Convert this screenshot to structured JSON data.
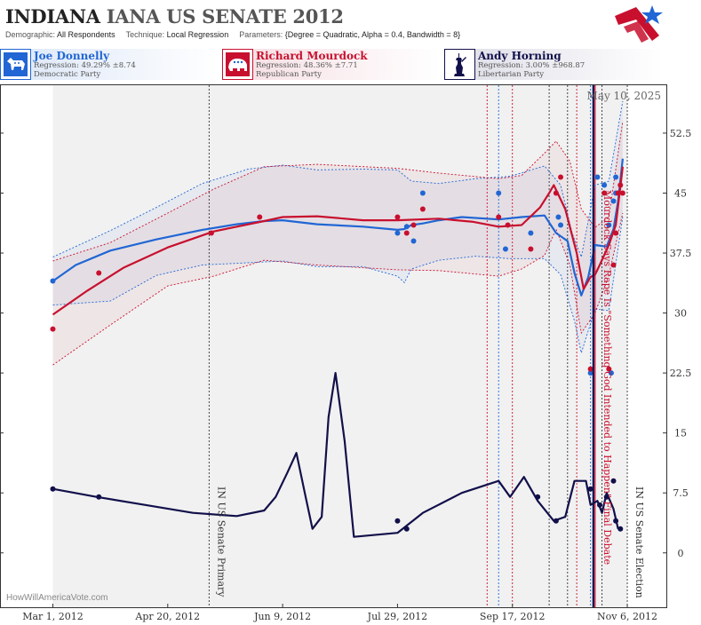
{
  "header": {
    "title_state": "INDIANA",
    "title_race": "IANA US SENATE 2012",
    "demographic_label": "Demographic:",
    "demographic_value": "All Respondents",
    "technique_label": "Technique:",
    "technique_value": "Local Regression",
    "parameters_label": "Parameters:",
    "parameters_value": "{Degree = Quadratic, Alpha = 0.4, Bandwidth = 8}"
  },
  "candidates": [
    {
      "name": "Joe Donnelly",
      "regression": "Regression: 49.29% ±8.74",
      "party": "Democratic Party",
      "color": "#2166d4",
      "icon": "donkey-icon"
    },
    {
      "name": "Richard Mourdock",
      "regression": "Regression: 48.36% ±7.71",
      "party": "Republican Party",
      "color": "#c8102e",
      "icon": "elephant-icon"
    },
    {
      "name": "Andy Horning",
      "regression": "Regression: 3.00% ±968.87",
      "party": "Libertarian Party",
      "color": "#12104a",
      "icon": "statue-of-liberty-icon"
    }
  ],
  "credit": "HowWillAmericaVote.com",
  "chart_data": {
    "type": "line",
    "date_label": "May 10, 2025",
    "x_ticks": [
      {
        "date": "2012-03-01",
        "label": "Mar 1, 2012"
      },
      {
        "date": "2012-04-20",
        "label": "Apr 20, 2012"
      },
      {
        "date": "2012-06-09",
        "label": "Jun 9, 2012"
      },
      {
        "date": "2012-07-29",
        "label": "Jul 29, 2012"
      },
      {
        "date": "2012-09-17",
        "label": "Sep 17, 2012"
      },
      {
        "date": "2012-11-06",
        "label": "Nov 6, 2012"
      }
    ],
    "y_ticks": [
      0,
      7.5,
      15,
      22.5,
      30,
      37.5,
      45,
      52.5
    ],
    "xlim": [
      "2012-02-07",
      "2012-11-23"
    ],
    "ylim": [
      -6.8,
      58.6
    ],
    "grid": false,
    "shaded_ranges": [
      {
        "start": "2012-03-01",
        "end": "2012-11-06"
      },
      {
        "start": "2012-09-06",
        "end": "2012-09-17"
      }
    ],
    "events": [
      {
        "date": "2012-05-08",
        "label": "IN US Senate Primary",
        "color": "#333333",
        "style": "dotted"
      },
      {
        "date": "2012-10-23",
        "label": "Mourdock Says Rape Is \"Something God Intended to Happen\" Final Debate",
        "color": "#c8102e",
        "style": "solid"
      },
      {
        "date": "2012-11-06",
        "label": "IN US Senate Election",
        "color": "#333333",
        "style": "dotted"
      }
    ],
    "reference_lines": [
      {
        "date": "2012-09-06",
        "color": "#c8102e"
      },
      {
        "date": "2012-09-11",
        "color": "#2166d4"
      },
      {
        "date": "2012-09-17",
        "color": "#c8102e"
      },
      {
        "date": "2012-10-03",
        "color": "#333333"
      },
      {
        "date": "2012-10-11",
        "color": "#333333"
      },
      {
        "date": "2012-10-15",
        "color": "#c8102e"
      },
      {
        "date": "2012-10-21",
        "color": "#2166d4"
      },
      {
        "date": "2012-10-26",
        "color": "#333333"
      }
    ],
    "series": [
      {
        "name": "Joe Donnelly",
        "color": "#2166d4",
        "line": [
          [
            "2012-03-01",
            34
          ],
          [
            "2012-03-11",
            36
          ],
          [
            "2012-03-26",
            37.8
          ],
          [
            "2012-04-15",
            39.2
          ],
          [
            "2012-05-05",
            40.4
          ],
          [
            "2012-05-20",
            41.1
          ],
          [
            "2012-06-01",
            41.5
          ],
          [
            "2012-06-09",
            41.6
          ],
          [
            "2012-06-24",
            41.1
          ],
          [
            "2012-07-14",
            40.8
          ],
          [
            "2012-07-29",
            40.4
          ],
          [
            "2012-08-01",
            40.5
          ],
          [
            "2012-08-04",
            41
          ],
          [
            "2012-08-09",
            41.2
          ],
          [
            "2012-08-16",
            41.6
          ],
          [
            "2012-08-26",
            42
          ],
          [
            "2012-09-11",
            41.7
          ],
          [
            "2012-09-21",
            42
          ],
          [
            "2012-10-01",
            42.2
          ],
          [
            "2012-10-06",
            40
          ],
          [
            "2012-10-11",
            39
          ],
          [
            "2012-10-14",
            35
          ],
          [
            "2012-10-17",
            32.2
          ],
          [
            "2012-10-20",
            34.5
          ],
          [
            "2012-10-23",
            38.5
          ],
          [
            "2012-10-28",
            38.3
          ],
          [
            "2012-10-31",
            40.5
          ],
          [
            "2012-11-02",
            44
          ],
          [
            "2012-11-04",
            49.3
          ]
        ],
        "upper": [
          [
            "2012-03-01",
            37
          ],
          [
            "2012-03-26",
            40.3
          ],
          [
            "2012-04-15",
            43.2
          ],
          [
            "2012-05-05",
            46.2
          ],
          [
            "2012-05-25",
            48
          ],
          [
            "2012-06-09",
            48.5
          ],
          [
            "2012-06-24",
            47.9
          ],
          [
            "2012-07-14",
            48
          ],
          [
            "2012-07-29",
            47.9
          ],
          [
            "2012-08-04",
            46.5
          ],
          [
            "2012-08-16",
            46.2
          ],
          [
            "2012-09-01",
            46.8
          ],
          [
            "2012-09-16",
            47.1
          ],
          [
            "2012-10-01",
            48.4
          ],
          [
            "2012-10-08",
            46
          ],
          [
            "2012-10-13",
            40
          ],
          [
            "2012-10-17",
            37
          ],
          [
            "2012-10-23",
            46
          ],
          [
            "2012-10-29",
            46.5
          ],
          [
            "2012-11-04",
            56.5
          ]
        ],
        "lower": [
          [
            "2012-03-01",
            31
          ],
          [
            "2012-03-26",
            31.5
          ],
          [
            "2012-04-15",
            34.7
          ],
          [
            "2012-05-05",
            36
          ],
          [
            "2012-06-09",
            36.5
          ],
          [
            "2012-06-24",
            35.8
          ],
          [
            "2012-07-14",
            35.8
          ],
          [
            "2012-07-29",
            34.6
          ],
          [
            "2012-08-01",
            33.8
          ],
          [
            "2012-08-04",
            35.5
          ],
          [
            "2012-08-16",
            36.6
          ],
          [
            "2012-09-01",
            37.1
          ],
          [
            "2012-09-16",
            36.8
          ],
          [
            "2012-10-01",
            36.8
          ],
          [
            "2012-10-08",
            34.8
          ],
          [
            "2012-10-14",
            29
          ],
          [
            "2012-10-17",
            25
          ],
          [
            "2012-10-23",
            30.5
          ],
          [
            "2012-10-29",
            30.3
          ],
          [
            "2012-11-04",
            42
          ]
        ],
        "points": [
          [
            "2012-03-01",
            34
          ],
          [
            "2012-07-29",
            40
          ],
          [
            "2012-08-02",
            40.8
          ],
          [
            "2012-08-05",
            39
          ],
          [
            "2012-08-09",
            45
          ],
          [
            "2012-09-11",
            45
          ],
          [
            "2012-09-14",
            38
          ],
          [
            "2012-09-25",
            40
          ],
          [
            "2012-10-07",
            42
          ],
          [
            "2012-10-08",
            41
          ],
          [
            "2012-10-21",
            22.5
          ],
          [
            "2012-10-24",
            47
          ],
          [
            "2012-10-27",
            46
          ],
          [
            "2012-10-29",
            41
          ],
          [
            "2012-10-30",
            22.5
          ],
          [
            "2012-10-31",
            44
          ],
          [
            "2012-11-01",
            45
          ],
          [
            "2012-11-01",
            47
          ]
        ]
      },
      {
        "name": "Richard Mourdock",
        "color": "#c8102e",
        "line": [
          [
            "2012-03-01",
            29.8
          ],
          [
            "2012-03-16",
            32.8
          ],
          [
            "2012-04-01",
            35.7
          ],
          [
            "2012-04-20",
            38.2
          ],
          [
            "2012-05-10",
            40.2
          ],
          [
            "2012-06-01",
            41.5
          ],
          [
            "2012-06-09",
            42
          ],
          [
            "2012-06-24",
            42.1
          ],
          [
            "2012-07-14",
            41.6
          ],
          [
            "2012-07-29",
            41.6
          ],
          [
            "2012-08-16",
            41.8
          ],
          [
            "2012-08-31",
            41.4
          ],
          [
            "2012-09-11",
            40.8
          ],
          [
            "2012-09-21",
            41
          ],
          [
            "2012-09-29",
            43.2
          ],
          [
            "2012-10-03",
            45
          ],
          [
            "2012-10-05",
            46
          ],
          [
            "2012-10-10",
            43
          ],
          [
            "2012-10-15",
            37.5
          ],
          [
            "2012-10-18",
            33
          ],
          [
            "2012-10-21",
            34.5
          ],
          [
            "2012-10-23",
            34.8
          ],
          [
            "2012-10-25",
            36
          ],
          [
            "2012-10-29",
            38.5
          ],
          [
            "2012-11-01",
            41
          ],
          [
            "2012-11-04",
            48.3
          ]
        ],
        "upper": [
          [
            "2012-03-01",
            36.5
          ],
          [
            "2012-03-26",
            38.8
          ],
          [
            "2012-04-20",
            42.5
          ],
          [
            "2012-05-10",
            45.5
          ],
          [
            "2012-06-01",
            48.3
          ],
          [
            "2012-06-24",
            48.6
          ],
          [
            "2012-07-29",
            48.1
          ],
          [
            "2012-08-16",
            47.5
          ],
          [
            "2012-09-11",
            46.8
          ],
          [
            "2012-09-21",
            47.2
          ],
          [
            "2012-10-01",
            50
          ],
          [
            "2012-10-06",
            51.5
          ],
          [
            "2012-10-12",
            49
          ],
          [
            "2012-10-17",
            43
          ],
          [
            "2012-10-23",
            40.7
          ],
          [
            "2012-10-29",
            42
          ],
          [
            "2012-11-04",
            54
          ]
        ],
        "lower": [
          [
            "2012-03-01",
            23.5
          ],
          [
            "2012-03-26",
            28.5
          ],
          [
            "2012-04-20",
            33.4
          ],
          [
            "2012-05-10",
            34.6
          ],
          [
            "2012-06-01",
            36.6
          ],
          [
            "2012-06-24",
            36
          ],
          [
            "2012-07-29",
            35.4
          ],
          [
            "2012-08-16",
            35.3
          ],
          [
            "2012-09-11",
            34.6
          ],
          [
            "2012-09-21",
            35.5
          ],
          [
            "2012-10-01",
            37.2
          ],
          [
            "2012-10-06",
            40.5
          ],
          [
            "2012-10-12",
            36
          ],
          [
            "2012-10-17",
            27.5
          ],
          [
            "2012-10-23",
            30
          ],
          [
            "2012-10-29",
            34.7
          ],
          [
            "2012-11-04",
            42.5
          ]
        ],
        "points": [
          [
            "2012-03-01",
            28
          ],
          [
            "2012-03-21",
            35
          ],
          [
            "2012-05-09",
            40
          ],
          [
            "2012-05-30",
            42
          ],
          [
            "2012-07-29",
            42
          ],
          [
            "2012-08-02",
            40
          ],
          [
            "2012-08-05",
            41
          ],
          [
            "2012-08-09",
            43
          ],
          [
            "2012-09-11",
            42
          ],
          [
            "2012-09-15",
            41
          ],
          [
            "2012-09-25",
            38
          ],
          [
            "2012-10-06",
            45
          ],
          [
            "2012-10-08",
            47
          ],
          [
            "2012-10-21",
            23
          ],
          [
            "2012-10-27",
            45
          ],
          [
            "2012-10-29",
            23
          ],
          [
            "2012-10-31",
            36
          ],
          [
            "2012-11-01",
            40
          ],
          [
            "2012-11-02",
            45
          ],
          [
            "2012-11-03",
            46
          ],
          [
            "2012-11-04",
            45
          ]
        ]
      },
      {
        "name": "Andy Horning",
        "color": "#12104a",
        "line": [
          [
            "2012-03-01",
            8
          ],
          [
            "2012-03-20",
            7
          ],
          [
            "2012-04-10",
            6
          ],
          [
            "2012-05-01",
            5
          ],
          [
            "2012-05-20",
            4.6
          ],
          [
            "2012-06-01",
            5.3
          ],
          [
            "2012-06-06",
            7
          ],
          [
            "2012-06-11",
            10
          ],
          [
            "2012-06-15",
            12.5
          ],
          [
            "2012-06-19",
            7
          ],
          [
            "2012-06-22",
            3
          ],
          [
            "2012-06-26",
            4.5
          ],
          [
            "2012-06-29",
            17
          ],
          [
            "2012-07-02",
            22.5
          ],
          [
            "2012-07-06",
            14
          ],
          [
            "2012-07-10",
            2
          ],
          [
            "2012-07-29",
            2.5
          ],
          [
            "2012-08-09",
            5
          ],
          [
            "2012-08-26",
            7.5
          ],
          [
            "2012-09-11",
            9
          ],
          [
            "2012-09-16",
            7
          ],
          [
            "2012-09-22",
            9.5
          ],
          [
            "2012-09-28",
            6.5
          ],
          [
            "2012-10-05",
            4
          ],
          [
            "2012-10-10",
            4.5
          ],
          [
            "2012-10-14",
            9
          ],
          [
            "2012-10-19",
            9
          ],
          [
            "2012-10-21",
            6
          ],
          [
            "2012-10-24",
            6.5
          ],
          [
            "2012-10-26",
            5
          ],
          [
            "2012-10-28",
            7.5
          ],
          [
            "2012-10-31",
            5.5
          ],
          [
            "2012-11-02",
            3
          ]
        ],
        "points": [
          [
            "2012-03-01",
            8
          ],
          [
            "2012-03-21",
            7
          ],
          [
            "2012-07-29",
            4
          ],
          [
            "2012-08-02",
            3
          ],
          [
            "2012-09-28",
            7
          ],
          [
            "2012-10-06",
            4
          ],
          [
            "2012-10-21",
            8
          ],
          [
            "2012-10-25",
            6
          ],
          [
            "2012-10-28",
            7
          ],
          [
            "2012-10-31",
            9
          ],
          [
            "2012-11-01",
            4
          ],
          [
            "2012-11-03",
            3
          ]
        ]
      }
    ]
  }
}
